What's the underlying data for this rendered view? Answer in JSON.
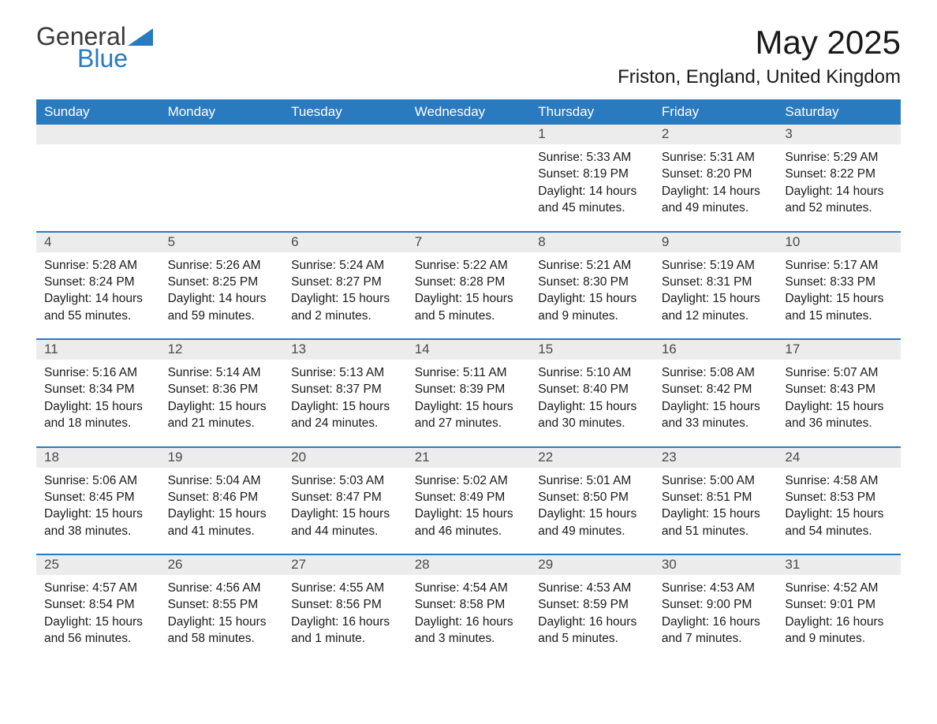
{
  "logo": {
    "general": "General",
    "blue": "Blue"
  },
  "title": "May 2025",
  "location": "Friston, England, United Kingdom",
  "colors": {
    "header_bg": "#2a7ac0",
    "header_text": "#ffffff",
    "daynum_bg": "#ececec",
    "week_border": "#2a7ac0",
    "body_text": "#1a1a1a",
    "logo_gray": "#3a3a3a",
    "logo_blue": "#2a7ac0",
    "page_bg": "#ffffff"
  },
  "typography": {
    "title_fontsize": 42,
    "location_fontsize": 24,
    "header_fontsize": 17,
    "daynum_fontsize": 17,
    "body_fontsize": 15.5,
    "logo_fontsize": 32
  },
  "day_labels": [
    "Sunday",
    "Monday",
    "Tuesday",
    "Wednesday",
    "Thursday",
    "Friday",
    "Saturday"
  ],
  "labels": {
    "sunrise": "Sunrise:",
    "sunset": "Sunset:",
    "daylight": "Daylight:"
  },
  "weeks": [
    [
      null,
      null,
      null,
      null,
      {
        "n": "1",
        "sunrise": "5:33 AM",
        "sunset": "8:19 PM",
        "daylight": "14 hours and 45 minutes."
      },
      {
        "n": "2",
        "sunrise": "5:31 AM",
        "sunset": "8:20 PM",
        "daylight": "14 hours and 49 minutes."
      },
      {
        "n": "3",
        "sunrise": "5:29 AM",
        "sunset": "8:22 PM",
        "daylight": "14 hours and 52 minutes."
      }
    ],
    [
      {
        "n": "4",
        "sunrise": "5:28 AM",
        "sunset": "8:24 PM",
        "daylight": "14 hours and 55 minutes."
      },
      {
        "n": "5",
        "sunrise": "5:26 AM",
        "sunset": "8:25 PM",
        "daylight": "14 hours and 59 minutes."
      },
      {
        "n": "6",
        "sunrise": "5:24 AM",
        "sunset": "8:27 PM",
        "daylight": "15 hours and 2 minutes."
      },
      {
        "n": "7",
        "sunrise": "5:22 AM",
        "sunset": "8:28 PM",
        "daylight": "15 hours and 5 minutes."
      },
      {
        "n": "8",
        "sunrise": "5:21 AM",
        "sunset": "8:30 PM",
        "daylight": "15 hours and 9 minutes."
      },
      {
        "n": "9",
        "sunrise": "5:19 AM",
        "sunset": "8:31 PM",
        "daylight": "15 hours and 12 minutes."
      },
      {
        "n": "10",
        "sunrise": "5:17 AM",
        "sunset": "8:33 PM",
        "daylight": "15 hours and 15 minutes."
      }
    ],
    [
      {
        "n": "11",
        "sunrise": "5:16 AM",
        "sunset": "8:34 PM",
        "daylight": "15 hours and 18 minutes."
      },
      {
        "n": "12",
        "sunrise": "5:14 AM",
        "sunset": "8:36 PM",
        "daylight": "15 hours and 21 minutes."
      },
      {
        "n": "13",
        "sunrise": "5:13 AM",
        "sunset": "8:37 PM",
        "daylight": "15 hours and 24 minutes."
      },
      {
        "n": "14",
        "sunrise": "5:11 AM",
        "sunset": "8:39 PM",
        "daylight": "15 hours and 27 minutes."
      },
      {
        "n": "15",
        "sunrise": "5:10 AM",
        "sunset": "8:40 PM",
        "daylight": "15 hours and 30 minutes."
      },
      {
        "n": "16",
        "sunrise": "5:08 AM",
        "sunset": "8:42 PM",
        "daylight": "15 hours and 33 minutes."
      },
      {
        "n": "17",
        "sunrise": "5:07 AM",
        "sunset": "8:43 PM",
        "daylight": "15 hours and 36 minutes."
      }
    ],
    [
      {
        "n": "18",
        "sunrise": "5:06 AM",
        "sunset": "8:45 PM",
        "daylight": "15 hours and 38 minutes."
      },
      {
        "n": "19",
        "sunrise": "5:04 AM",
        "sunset": "8:46 PM",
        "daylight": "15 hours and 41 minutes."
      },
      {
        "n": "20",
        "sunrise": "5:03 AM",
        "sunset": "8:47 PM",
        "daylight": "15 hours and 44 minutes."
      },
      {
        "n": "21",
        "sunrise": "5:02 AM",
        "sunset": "8:49 PM",
        "daylight": "15 hours and 46 minutes."
      },
      {
        "n": "22",
        "sunrise": "5:01 AM",
        "sunset": "8:50 PM",
        "daylight": "15 hours and 49 minutes."
      },
      {
        "n": "23",
        "sunrise": "5:00 AM",
        "sunset": "8:51 PM",
        "daylight": "15 hours and 51 minutes."
      },
      {
        "n": "24",
        "sunrise": "4:58 AM",
        "sunset": "8:53 PM",
        "daylight": "15 hours and 54 minutes."
      }
    ],
    [
      {
        "n": "25",
        "sunrise": "4:57 AM",
        "sunset": "8:54 PM",
        "daylight": "15 hours and 56 minutes."
      },
      {
        "n": "26",
        "sunrise": "4:56 AM",
        "sunset": "8:55 PM",
        "daylight": "15 hours and 58 minutes."
      },
      {
        "n": "27",
        "sunrise": "4:55 AM",
        "sunset": "8:56 PM",
        "daylight": "16 hours and 1 minute."
      },
      {
        "n": "28",
        "sunrise": "4:54 AM",
        "sunset": "8:58 PM",
        "daylight": "16 hours and 3 minutes."
      },
      {
        "n": "29",
        "sunrise": "4:53 AM",
        "sunset": "8:59 PM",
        "daylight": "16 hours and 5 minutes."
      },
      {
        "n": "30",
        "sunrise": "4:53 AM",
        "sunset": "9:00 PM",
        "daylight": "16 hours and 7 minutes."
      },
      {
        "n": "31",
        "sunrise": "4:52 AM",
        "sunset": "9:01 PM",
        "daylight": "16 hours and 9 minutes."
      }
    ]
  ]
}
